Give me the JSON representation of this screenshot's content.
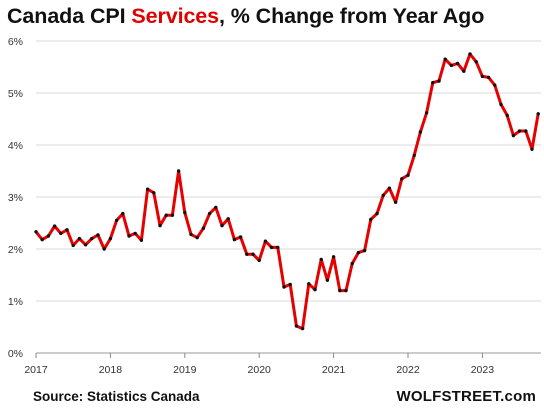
{
  "title": {
    "part1": "Canada CPI ",
    "part2": "Services",
    "part3": ", % Change from Year Ago"
  },
  "footer": {
    "source": "Source: Statistics Canada",
    "brand": "WOLFSTREET.com"
  },
  "colors": {
    "line": "#e60000",
    "marker": "#111111",
    "accent": "#e00000",
    "grid": "#d9d9d9"
  },
  "chart_data": {
    "type": "line",
    "title": "Canada CPI Services, % Change from Year Ago",
    "xlabel": "",
    "ylabel": "",
    "ylim": [
      0,
      6
    ],
    "yticks": [
      0,
      1,
      2,
      3,
      4,
      5,
      6
    ],
    "ytick_labels": [
      "0%",
      "1%",
      "2%",
      "3%",
      "4%",
      "5%",
      "6%"
    ],
    "xticks": [
      "2017",
      "2018",
      "2019",
      "2020",
      "2021",
      "2022",
      "2023"
    ],
    "xlim": [
      "2017-01",
      "2023-10"
    ],
    "grid": "horizontal",
    "series": [
      {
        "points": [
          [
            "2017-01",
            2.33
          ],
          [
            "2017-02",
            2.18
          ],
          [
            "2017-03",
            2.25
          ],
          [
            "2017-04",
            2.44
          ],
          [
            "2017-05",
            2.3
          ],
          [
            "2017-06",
            2.37
          ],
          [
            "2017-07",
            2.07
          ],
          [
            "2017-08",
            2.2
          ],
          [
            "2017-09",
            2.08
          ],
          [
            "2017-10",
            2.2
          ],
          [
            "2017-11",
            2.27
          ],
          [
            "2017-12",
            2.0
          ],
          [
            "2018-01",
            2.2
          ],
          [
            "2018-02",
            2.55
          ],
          [
            "2018-03",
            2.68
          ],
          [
            "2018-04",
            2.25
          ],
          [
            "2018-05",
            2.3
          ],
          [
            "2018-06",
            2.17
          ],
          [
            "2018-07",
            3.15
          ],
          [
            "2018-08",
            3.08
          ],
          [
            "2018-09",
            2.45
          ],
          [
            "2018-10",
            2.65
          ],
          [
            "2018-11",
            2.65
          ],
          [
            "2018-12",
            3.5
          ],
          [
            "2019-01",
            2.7
          ],
          [
            "2019-02",
            2.28
          ],
          [
            "2019-03",
            2.22
          ],
          [
            "2019-04",
            2.4
          ],
          [
            "2019-05",
            2.68
          ],
          [
            "2019-06",
            2.8
          ],
          [
            "2019-07",
            2.45
          ],
          [
            "2019-08",
            2.58
          ],
          [
            "2019-09",
            2.18
          ],
          [
            "2019-10",
            2.23
          ],
          [
            "2019-11",
            1.9
          ],
          [
            "2019-12",
            1.9
          ],
          [
            "2020-01",
            1.78
          ],
          [
            "2020-02",
            2.15
          ],
          [
            "2020-03",
            2.03
          ],
          [
            "2020-04",
            2.03
          ],
          [
            "2020-05",
            1.27
          ],
          [
            "2020-06",
            1.32
          ],
          [
            "2020-07",
            0.52
          ],
          [
            "2020-08",
            0.47
          ],
          [
            "2020-09",
            1.33
          ],
          [
            "2020-10",
            1.22
          ],
          [
            "2020-11",
            1.8
          ],
          [
            "2020-12",
            1.4
          ],
          [
            "2021-01",
            1.85
          ],
          [
            "2021-02",
            1.2
          ],
          [
            "2021-03",
            1.2
          ],
          [
            "2021-04",
            1.72
          ],
          [
            "2021-05",
            1.93
          ],
          [
            "2021-06",
            1.97
          ],
          [
            "2021-07",
            2.57
          ],
          [
            "2021-08",
            2.68
          ],
          [
            "2021-09",
            3.03
          ],
          [
            "2021-10",
            3.17
          ],
          [
            "2021-11",
            2.9
          ],
          [
            "2021-12",
            3.35
          ],
          [
            "2022-01",
            3.42
          ],
          [
            "2022-02",
            3.8
          ],
          [
            "2022-03",
            4.25
          ],
          [
            "2022-04",
            4.62
          ],
          [
            "2022-05",
            5.2
          ],
          [
            "2022-06",
            5.23
          ],
          [
            "2022-07",
            5.65
          ],
          [
            "2022-08",
            5.53
          ],
          [
            "2022-09",
            5.57
          ],
          [
            "2022-10",
            5.42
          ],
          [
            "2022-11",
            5.75
          ],
          [
            "2022-12",
            5.6
          ],
          [
            "2023-01",
            5.32
          ],
          [
            "2023-02",
            5.3
          ],
          [
            "2023-03",
            5.15
          ],
          [
            "2023-04",
            4.78
          ],
          [
            "2023-05",
            4.57
          ],
          [
            "2023-06",
            4.18
          ],
          [
            "2023-07",
            4.27
          ],
          [
            "2023-08",
            4.27
          ],
          [
            "2023-09",
            3.92
          ],
          [
            "2023-10",
            4.6
          ]
        ]
      }
    ]
  }
}
